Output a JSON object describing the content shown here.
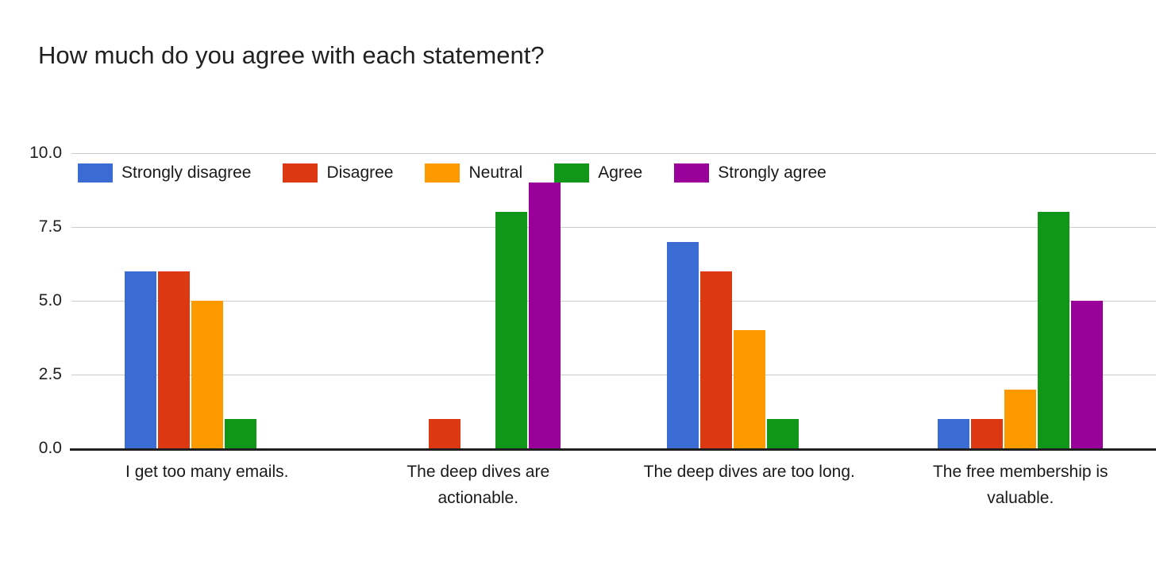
{
  "title": "How much do you agree with each statement?",
  "chart_data": {
    "type": "bar",
    "title": "How much do you agree with each statement?",
    "categories": [
      "I get too many emails.",
      "The deep dives are actionable.",
      "The deep dives are too long.",
      "The free membership is valuable."
    ],
    "categories_display": [
      "I get too many emails.",
      "The deep dives are\nactionable.",
      "The deep dives are too long.",
      "The free membership is\nvaluable."
    ],
    "series": [
      {
        "name": "Strongly disagree",
        "color": "#3B6CD4",
        "values": [
          6,
          0,
          7,
          1
        ]
      },
      {
        "name": "Disagree",
        "color": "#DC3912",
        "values": [
          6,
          1,
          6,
          1
        ]
      },
      {
        "name": "Neutral",
        "color": "#FF9900",
        "values": [
          5,
          0,
          4,
          2
        ]
      },
      {
        "name": "Agree",
        "color": "#109618",
        "values": [
          1,
          8,
          1,
          8
        ]
      },
      {
        "name": "Strongly agree",
        "color": "#990099",
        "values": [
          0,
          9,
          0,
          5
        ]
      }
    ],
    "ylim": [
      0,
      10
    ],
    "yticks": [
      {
        "label": "10.0",
        "value": 10
      },
      {
        "label": "7.5",
        "value": 7.5
      },
      {
        "label": "5.0",
        "value": 5
      },
      {
        "label": "2.5",
        "value": 2.5
      },
      {
        "label": "0.0",
        "value": 0
      }
    ],
    "grid": true,
    "legend_position": "top",
    "gridline_color": "#cccccc",
    "axis_color": "#1f1f1f",
    "background_color": "#ffffff"
  }
}
